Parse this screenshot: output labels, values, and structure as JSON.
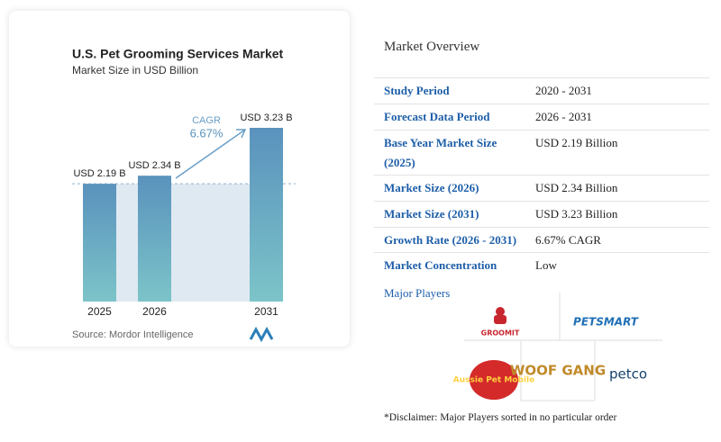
{
  "chart_data": {
    "type": "bar",
    "title": "U.S. Pet Grooming Services Market",
    "subtitle": "Market Size in USD Billion",
    "categories": [
      "2025",
      "2026",
      "2031"
    ],
    "values": [
      2.19,
      2.34,
      3.23
    ],
    "value_labels": [
      "USD 2.19 B",
      "USD 2.34 B",
      "USD 3.23 B"
    ],
    "color": "#5a92bd",
    "annotation": {
      "label": "CAGR",
      "value": "6.67%"
    },
    "source": "Source: Mordor Intelligence"
  },
  "overview": {
    "title": "Market Overview",
    "rows": [
      [
        "Study Period",
        "2020 - 2031"
      ],
      [
        "Forecast Data Period",
        "2026 - 2031"
      ],
      [
        "Base Year Market Size (2025)",
        "USD 2.19 Billion"
      ],
      [
        "Market Size (2026)",
        "USD 2.34 Billion"
      ],
      [
        "Market Size (2031)",
        "USD 3.23 Billion"
      ],
      [
        "Growth Rate (2026 - 2031)",
        "6.67% CAGR"
      ],
      [
        "Market Concentration",
        "Low"
      ]
    ],
    "players_title": "Major Players",
    "players": [
      "GROOMIT",
      "PETSMART",
      "Aussie Pet Mobile",
      "WOOF GANG",
      "petco"
    ],
    "disclaimer": "*Disclaimer: Major Players sorted in no particular order"
  }
}
